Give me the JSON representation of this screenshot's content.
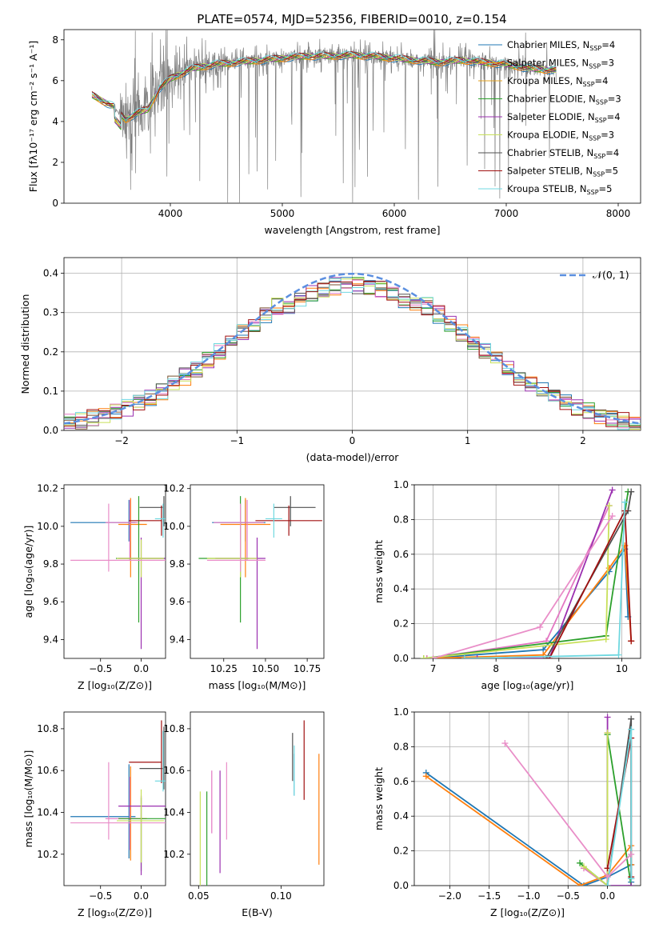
{
  "figure": {
    "title": "PLATE=0574, MJD=52356, FIBERID=0010, z=0.154"
  },
  "models": [
    {
      "name": "Chabrier MILES, N",
      "sub": "SSP",
      "suffix": "=4",
      "color": "#1f77b4"
    },
    {
      "name": "Salpeter MILES, N",
      "sub": "SSP",
      "suffix": "=3",
      "color": "#ff7f0e"
    },
    {
      "name": "Kroupa MILES, N",
      "sub": "SSP",
      "suffix": "=4",
      "color": "#e0a020"
    },
    {
      "name": "Chabrier ELODIE, N",
      "sub": "SSP",
      "suffix": "=3",
      "color": "#2ca02c"
    },
    {
      "name": "Salpeter ELODIE, N",
      "sub": "SSP",
      "suffix": "=4",
      "color": "#9b30b0"
    },
    {
      "name": "Kroupa ELODIE, N",
      "sub": "SSP",
      "suffix": "=3",
      "color": "#c8e05a"
    },
    {
      "name": "Chabrier STELIB, N",
      "sub": "SSP",
      "suffix": "=4",
      "color": "#505050"
    },
    {
      "name": "Salpeter STELIB, N",
      "sub": "SSP",
      "suffix": "=5",
      "color": "#a01010"
    },
    {
      "name": "Kroupa STELIB, N",
      "sub": "SSP",
      "suffix": "=5",
      "color": "#70d8e0"
    }
  ],
  "chart_data": [
    {
      "id": "spectrum",
      "type": "line",
      "xlabel": "wavelength [Angstrom, rest frame]",
      "ylabel": "Flux [fλ10⁻¹⁷ erg cm⁻² s⁻¹ A⁻¹]",
      "xlim": [
        3050,
        8200
      ],
      "ylim": [
        0,
        8.5
      ],
      "xticks": [
        4000,
        5000,
        6000,
        7000,
        8000
      ],
      "yticks": [
        0,
        2,
        4,
        6,
        8
      ],
      "data_range": [
        3300,
        7450
      ],
      "continuum": {
        "x": [
          3300,
          3400,
          3500,
          3600,
          3700,
          3800,
          3900,
          4000,
          4200,
          4400,
          4600,
          4800,
          5000,
          5200,
          5400,
          5600,
          5800,
          6000,
          6200,
          6400,
          6600,
          6800,
          7000,
          7200,
          7450
        ],
        "y": [
          5.3,
          5.0,
          4.7,
          4.1,
          4.4,
          4.6,
          5.6,
          6.1,
          6.6,
          6.8,
          6.9,
          7.0,
          7.1,
          7.2,
          7.2,
          7.25,
          7.2,
          7.1,
          7.0,
          6.9,
          7.0,
          6.9,
          6.8,
          6.6,
          6.5
        ]
      }
    },
    {
      "id": "residuals",
      "type": "line",
      "xlabel": "(data-model)/error",
      "ylabel": "Normed distribution",
      "xlim": [
        -2.5,
        2.5
      ],
      "ylim": [
        0,
        0.44
      ],
      "xticks": [
        -2,
        -1,
        0,
        1,
        2
      ],
      "yticks": [
        0.0,
        0.1,
        0.2,
        0.3,
        0.4
      ],
      "grid": true,
      "legend": {
        "label": "𝒩(0, 1)",
        "placement": "top-right"
      },
      "bin_edges_start": -2.5,
      "bin_width": 0.1,
      "reference_curve": {
        "type": "normal",
        "mean": 0,
        "sigma": 1
      }
    },
    {
      "id": "age-vs-Z",
      "type": "scatter",
      "xlabel": "Z [log₁₀(Z/Z⊙)]",
      "ylabel": "age  [log₁₀(age/yr)]",
      "xlim": [
        -0.95,
        0.3
      ],
      "ylim": [
        9.3,
        10.22
      ],
      "xticks": [
        -0.5,
        0.0
      ],
      "yticks": [
        9.4,
        9.6,
        9.8,
        10.0,
        10.2
      ],
      "points": [
        {
          "x": -0.15,
          "y": 10.02,
          "xerr": [
            0.72,
            0.08
          ],
          "yerr": [
            0.1,
            0.12
          ]
        },
        {
          "x": -0.13,
          "y": 10.01,
          "xerr": [
            0.15,
            0.2
          ],
          "yerr": [
            0.28,
            0.14
          ]
        },
        {
          "x": -0.14,
          "y": 10.02,
          "xerr": [
            0.3,
            0.1
          ],
          "yerr": [
            0.2,
            0.12
          ]
        },
        {
          "x": -0.03,
          "y": 9.83,
          "xerr": [
            0.28,
            0.33
          ],
          "yerr": [
            0.34,
            0.33
          ]
        },
        {
          "x": 0.0,
          "y": 9.83,
          "xerr": [
            0.28,
            0.3
          ],
          "yerr": [
            0.48,
            0.11
          ]
        },
        {
          "x": 0.0,
          "y": 9.83,
          "xerr": [
            0.3,
            0.28
          ],
          "yerr": [
            0.1,
            0.1
          ]
        },
        {
          "x": 0.28,
          "y": 10.1,
          "xerr": [
            0.3,
            0.0
          ],
          "yerr": [
            0.1,
            0.06
          ]
        },
        {
          "x": 0.25,
          "y": 10.03,
          "xerr": [
            0.4,
            0.0
          ],
          "yerr": [
            0.08,
            0.08
          ]
        },
        {
          "x": 0.27,
          "y": 10.04,
          "xerr": [
            0.1,
            0.03
          ],
          "yerr": [
            0.1,
            0.08
          ]
        },
        {
          "x": -0.4,
          "y": 9.82,
          "xerr": [
            0.47,
            0.7
          ],
          "yerr": [
            0.06,
            0.3
          ]
        }
      ]
    },
    {
      "id": "age-vs-mass",
      "type": "scatter",
      "xlabel": "mass [log₁₀(M/M⊙)]",
      "ylabel": "",
      "xlim": [
        10.05,
        10.85
      ],
      "ylim": [
        9.3,
        10.22
      ],
      "xticks": [
        10.25,
        10.5,
        10.75
      ],
      "yticks": [
        9.4,
        9.6,
        9.8,
        10.0,
        10.2
      ],
      "points": [
        {
          "x": 10.38,
          "y": 10.02,
          "xerr": [
            0.2,
            0.12
          ],
          "yerr": [
            0.1,
            0.12
          ]
        },
        {
          "x": 10.38,
          "y": 10.01,
          "xerr": [
            0.15,
            0.15
          ],
          "yerr": [
            0.28,
            0.14
          ]
        },
        {
          "x": 10.39,
          "y": 10.02,
          "xerr": [
            0.2,
            0.1
          ],
          "yerr": [
            0.2,
            0.12
          ]
        },
        {
          "x": 10.35,
          "y": 9.83,
          "xerr": [
            0.25,
            0.05
          ],
          "yerr": [
            0.34,
            0.33
          ]
        },
        {
          "x": 10.45,
          "y": 9.83,
          "xerr": [
            0.25,
            0.05
          ],
          "yerr": [
            0.48,
            0.11
          ]
        },
        {
          "x": 10.35,
          "y": 9.83,
          "xerr": [
            0.2,
            0.1
          ],
          "yerr": [
            0.1,
            0.1
          ]
        },
        {
          "x": 10.65,
          "y": 10.1,
          "xerr": [
            0.1,
            0.15
          ],
          "yerr": [
            0.1,
            0.06
          ]
        },
        {
          "x": 10.64,
          "y": 10.03,
          "xerr": [
            0.2,
            0.2
          ],
          "yerr": [
            0.08,
            0.08
          ]
        },
        {
          "x": 10.55,
          "y": 10.04,
          "xerr": [
            0.05,
            0.05
          ],
          "yerr": [
            0.1,
            0.08
          ]
        },
        {
          "x": 10.35,
          "y": 9.82,
          "xerr": [
            0.2,
            0.15
          ],
          "yerr": [
            0.06,
            0.3
          ]
        }
      ]
    },
    {
      "id": "mass-weight-vs-age",
      "type": "line",
      "xlabel": "age  [log₁₀(age/yr)]",
      "ylabel": "mass weight",
      "xlim": [
        6.7,
        10.3
      ],
      "ylim": [
        0,
        1.0
      ],
      "xticks": [
        7,
        8,
        9,
        10
      ],
      "yticks": [
        0.0,
        0.2,
        0.4,
        0.6,
        0.8,
        1.0
      ],
      "grid": true,
      "series": [
        {
          "x": [
            6.9,
            8.75,
            9.8,
            10.05,
            10.1
          ],
          "y": [
            0.0,
            0.05,
            0.5,
            0.63,
            0.24
          ]
        },
        {
          "x": [
            6.9,
            8.75,
            9.8,
            10.05,
            10.15
          ],
          "y": [
            0.0,
            0.02,
            0.52,
            0.65,
            0.1
          ]
        },
        {
          "x": [
            6.9,
            8.8,
            9.8
          ],
          "y": [
            0.0,
            0.1,
            0.88
          ]
        },
        {
          "x": [
            6.85,
            9.75,
            10.1
          ],
          "y": [
            0.0,
            0.13,
            0.96
          ]
        },
        {
          "x": [
            7.7,
            8.85,
            9.85
          ],
          "y": [
            0.0,
            0.0,
            0.97
          ]
        },
        {
          "x": [
            6.85,
            9.75,
            9.8
          ],
          "y": [
            0.0,
            0.11,
            0.88
          ]
        },
        {
          "x": [
            8.8,
            10.1,
            10.15
          ],
          "y": [
            0.0,
            0.85,
            0.96
          ]
        },
        {
          "x": [
            8.85,
            10.05,
            10.15
          ],
          "y": [
            0.0,
            0.85,
            0.1
          ]
        },
        {
          "x": [
            7.5,
            9.95,
            10.05
          ],
          "y": [
            0.0,
            0.02,
            0.9
          ]
        },
        {
          "x": [
            7.0,
            8.7,
            9.85
          ],
          "y": [
            0.0,
            0.18,
            0.82
          ]
        }
      ]
    },
    {
      "id": "mass-vs-Z",
      "type": "scatter",
      "xlabel": "Z [log₁₀(Z/Z⊙)]",
      "ylabel": "mass [log₁₀(M/M⊙)]",
      "xlim": [
        -0.95,
        0.3
      ],
      "ylim": [
        10.05,
        10.88
      ],
      "xticks": [
        -0.5,
        0.0
      ],
      "yticks": [
        10.2,
        10.4,
        10.6,
        10.8
      ],
      "points": [
        {
          "x": -0.15,
          "y": 10.38,
          "xerr": [
            0.72,
            0.08
          ],
          "yerr": [
            0.2,
            0.25
          ]
        },
        {
          "x": -0.13,
          "y": 10.37,
          "xerr": [
            0.15,
            0.2
          ],
          "yerr": [
            0.2,
            0.25
          ]
        },
        {
          "x": -0.14,
          "y": 10.37,
          "xerr": [
            0.3,
            0.1
          ],
          "yerr": [
            0.15,
            0.2
          ]
        },
        {
          "x": 0.0,
          "y": 10.37,
          "xerr": [
            0.28,
            0.33
          ],
          "yerr": [
            0.25,
            0.1
          ]
        },
        {
          "x": 0.0,
          "y": 10.43,
          "xerr": [
            0.28,
            0.3
          ],
          "yerr": [
            0.33,
            0.05
          ]
        },
        {
          "x": 0.0,
          "y": 10.36,
          "xerr": [
            0.3,
            0.28
          ],
          "yerr": [
            0.2,
            0.15
          ]
        },
        {
          "x": 0.28,
          "y": 10.61,
          "xerr": [
            0.3,
            0.0
          ],
          "yerr": [
            0.1,
            0.2
          ]
        },
        {
          "x": 0.25,
          "y": 10.64,
          "xerr": [
            0.4,
            0.0
          ],
          "yerr": [
            0.1,
            0.2
          ]
        },
        {
          "x": 0.27,
          "y": 10.55,
          "xerr": [
            0.1,
            0.03
          ],
          "yerr": [
            0.05,
            0.24
          ]
        },
        {
          "x": -0.4,
          "y": 10.35,
          "xerr": [
            0.47,
            0.7
          ],
          "yerr": [
            0.08,
            0.29
          ]
        }
      ]
    },
    {
      "id": "mass-vs-EBV",
      "type": "scatter",
      "xlabel": "E(B-V)",
      "ylabel": "",
      "xlim": [
        0.045,
        0.126
      ],
      "ylim": [
        10.05,
        10.88
      ],
      "xticks": [
        0.05,
        0.1
      ],
      "yticks": [
        10.2,
        10.4,
        10.6,
        10.8
      ],
      "points": [
        {
          "x": 0.108,
          "y": 10.6,
          "yerr": [
            0.12,
            0.08
          ]
        },
        {
          "x": 0.123,
          "y": 10.45,
          "yerr": [
            0.3,
            0.23
          ]
        },
        {
          "x": 0.058,
          "y": 10.5,
          "yerr": [
            0.2,
            0.1
          ]
        },
        {
          "x": 0.055,
          "y": 10.33,
          "yerr": [
            0.28,
            0.17
          ]
        },
        {
          "x": 0.063,
          "y": 10.35,
          "yerr": [
            0.24,
            0.25
          ]
        },
        {
          "x": 0.051,
          "y": 10.3,
          "yerr": [
            0.25,
            0.2
          ]
        },
        {
          "x": 0.107,
          "y": 10.65,
          "yerr": [
            0.1,
            0.13
          ]
        },
        {
          "x": 0.114,
          "y": 10.65,
          "yerr": [
            0.19,
            0.19
          ]
        },
        {
          "x": 0.108,
          "y": 10.6,
          "yerr": [
            0.12,
            0.12
          ]
        },
        {
          "x": 0.067,
          "y": 10.45,
          "yerr": [
            0.18,
            0.19
          ]
        }
      ]
    },
    {
      "id": "mass-weight-vs-Z",
      "type": "line",
      "xlabel": "Z [log₁₀(Z/Z⊙)]",
      "ylabel": "mass weight",
      "xlim": [
        -2.45,
        0.42
      ],
      "ylim": [
        0,
        1.0
      ],
      "xticks": [
        -2.0,
        -1.5,
        -1.0,
        -0.5,
        0.0
      ],
      "yticks": [
        0.0,
        0.2,
        0.4,
        0.6,
        0.8,
        1.0
      ],
      "grid": true,
      "series": [
        {
          "x": [
            -2.3,
            -0.3,
            0.0,
            0.3,
            0.3
          ],
          "y": [
            0.65,
            0.0,
            0.05,
            0.12,
            0.02
          ]
        },
        {
          "x": [
            -2.3,
            -0.35,
            0.0,
            0.3,
            0.3
          ],
          "y": [
            0.63,
            0.0,
            0.06,
            0.23,
            0.12
          ]
        },
        {
          "x": [
            -0.3,
            0.0,
            0.0
          ],
          "y": [
            0.1,
            0.0,
            0.88
          ]
        },
        {
          "x": [
            -0.35,
            0.0,
            0.0,
            0.3
          ],
          "y": [
            0.13,
            0.0,
            0.87,
            0.0
          ]
        },
        {
          "x": [
            0.0,
            0.0,
            0.3
          ],
          "y": [
            0.97,
            0.0,
            0.0
          ]
        },
        {
          "x": [
            -0.3,
            0.0,
            0.0
          ],
          "y": [
            0.11,
            0.0,
            0.88
          ]
        },
        {
          "x": [
            0.0,
            0.3,
            0.3
          ],
          "y": [
            0.0,
            0.96,
            0.04
          ]
        },
        {
          "x": [
            0.0,
            0.3,
            0.3
          ],
          "y": [
            0.1,
            0.85,
            0.05
          ]
        },
        {
          "x": [
            0.0,
            0.3,
            0.3
          ],
          "y": [
            0.0,
            0.9,
            0.04
          ]
        },
        {
          "x": [
            -1.3,
            0.0,
            0.3
          ],
          "y": [
            0.82,
            0.05,
            0.18
          ]
        }
      ]
    }
  ]
}
